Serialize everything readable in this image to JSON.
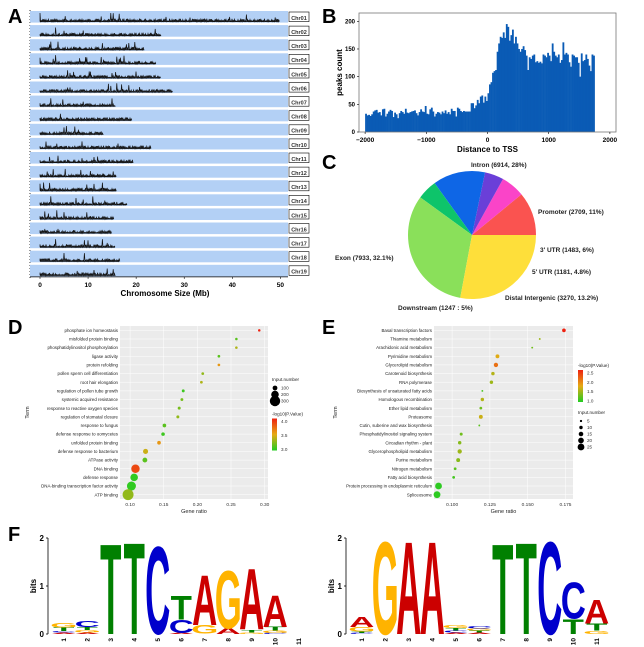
{
  "panels": {
    "A": "A",
    "B": "B",
    "C": "C",
    "D": "D",
    "E": "E",
    "F": "F"
  },
  "chart_data": [
    {
      "id": "A",
      "type": "bar",
      "title": "",
      "xlabel": "Chromosome Size (Mb)",
      "ylabel": "",
      "xlim": [
        0,
        52
      ],
      "xticks": [
        0,
        10,
        20,
        30,
        40,
        50
      ],
      "track_color": "#b3d0f5",
      "bar_color": "#111111",
      "note": "Peak density tracks per chromosome; lengths approximate (Mb)",
      "chromosomes": [
        {
          "name": "Chr01",
          "length": 49.7
        },
        {
          "name": "Chr02",
          "length": 25.2
        },
        {
          "name": "Chr03",
          "length": 21.7
        },
        {
          "name": "Chr04",
          "length": 24.1
        },
        {
          "name": "Chr05",
          "length": 25.0
        },
        {
          "name": "Chr06",
          "length": 27.5
        },
        {
          "name": "Chr07",
          "length": 15.7
        },
        {
          "name": "Chr08",
          "length": 19.0
        },
        {
          "name": "Chr09",
          "length": 13.2
        },
        {
          "name": "Chr10",
          "length": 23.0
        },
        {
          "name": "Chr11",
          "length": 19.4
        },
        {
          "name": "Chr12",
          "length": 15.8
        },
        {
          "name": "Chr13",
          "length": 15.9
        },
        {
          "name": "Chr14",
          "length": 18.0
        },
        {
          "name": "Chr15",
          "length": 15.3
        },
        {
          "name": "Chr16",
          "length": 14.9
        },
        {
          "name": "Chr17",
          "length": 15.6
        },
        {
          "name": "Chr18",
          "length": 16.5
        },
        {
          "name": "Chr19",
          "length": 15.7
        }
      ]
    },
    {
      "id": "B",
      "type": "bar",
      "title": "",
      "xlabel": "Distance to TSS",
      "ylabel": "peaks count",
      "xlim": [
        -2100,
        2100
      ],
      "ylim": [
        0,
        215
      ],
      "xticks": [
        -2000,
        -1000,
        0,
        1000,
        2000
      ],
      "yticks": [
        0,
        50,
        100,
        150,
        200
      ],
      "color": "#0a5bb5",
      "bin_width": 25,
      "x_start": -2000,
      "values": [
        33,
        30,
        31,
        29,
        32,
        37,
        39,
        40,
        35,
        36,
        30,
        41,
        42,
        28,
        33,
        37,
        40,
        38,
        27,
        35,
        32,
        25,
        34,
        38,
        36,
        33,
        42,
        35,
        34,
        36,
        37,
        38,
        39,
        34,
        30,
        36,
        41,
        37,
        36,
        47,
        33,
        32,
        41,
        44,
        37,
        28,
        33,
        36,
        35,
        32,
        37,
        34,
        39,
        33,
        36,
        32,
        42,
        38,
        38,
        28,
        44,
        42,
        38,
        36,
        38,
        37,
        37,
        37,
        37,
        52,
        52,
        43,
        48,
        58,
        52,
        64,
        66,
        53,
        64,
        56,
        70,
        86,
        90,
        107,
        110,
        112,
        145,
        160,
        172,
        170,
        180,
        170,
        195,
        190,
        165,
        175,
        185,
        160,
        172,
        160,
        150,
        145,
        150,
        155,
        148,
        138,
        112,
        135,
        132,
        138,
        140,
        126,
        128,
        125,
        127,
        124,
        140,
        138,
        135,
        143,
        138,
        128,
        160,
        145,
        138,
        135,
        140,
        125,
        130,
        162,
        140,
        143,
        140,
        126,
        118,
        140,
        138,
        135,
        135,
        125,
        100,
        142,
        128,
        130,
        140,
        132,
        120,
        110,
        140,
        138
      ]
    },
    {
      "id": "C",
      "type": "pie",
      "title": "",
      "slices": [
        {
          "label": "Promoter (2709, 11%)",
          "name": "Promoter",
          "value": 2709,
          "percent": 11,
          "color": "#fa5350"
        },
        {
          "label": "3' UTR (1483, 6%)",
          "name": "3' UTR",
          "value": 1483,
          "percent": 6,
          "color": "#fa44c8"
        },
        {
          "label": "5' UTR (1181, 4.8%)",
          "name": "5' UTR",
          "value": 1181,
          "percent": 4.8,
          "color": "#6a3fd8"
        },
        {
          "label": "Distal Intergenic (3270, 13.2%)",
          "name": "Distal Intergenic",
          "value": 3270,
          "percent": 13.2,
          "color": "#0e66e6"
        },
        {
          "label": "Downstream (1247 : 5%)",
          "name": "Downstream",
          "value": 1247,
          "percent": 5,
          "color": "#0ec46a"
        },
        {
          "label": "Exon (7933, 32.1%)",
          "name": "Exon",
          "value": 7933,
          "percent": 32.1,
          "color": "#8ae05a"
        },
        {
          "label": "Intron (6914, 28%)",
          "name": "Intron",
          "value": 6914,
          "percent": 28,
          "color": "#fedf3a"
        }
      ]
    },
    {
      "id": "D",
      "type": "scatter",
      "title": "",
      "xlabel": "Gene ratio",
      "ylabel": "Term",
      "xlim": [
        0.085,
        0.305
      ],
      "xticks": [
        "0.10",
        "0.15",
        "0.20",
        "0.25",
        "0.30"
      ],
      "xtick_values": [
        0.1,
        0.15,
        0.2,
        0.25,
        0.3
      ],
      "size_legend": {
        "title": "Input.number",
        "values": [
          100,
          200,
          300
        ]
      },
      "color_legend": {
        "title": "-log10(P.Value)",
        "ticks": [
          "4.0",
          "3.5",
          "3.0"
        ],
        "range": [
          2.8,
          4.2
        ],
        "low_color": "#22cc22",
        "high_color": "#ee2211"
      },
      "terms": [
        {
          "term": "phosphate ion homeostasis",
          "gene_ratio": 0.292,
          "input_number": 18,
          "neg_log10_p": 4.2
        },
        {
          "term": "misfolded protein binding",
          "gene_ratio": 0.258,
          "input_number": 20,
          "neg_log10_p": 3.0
        },
        {
          "term": "phosphatidylinositol phosphorylation",
          "gene_ratio": 0.258,
          "input_number": 20,
          "neg_log10_p": 3.3
        },
        {
          "term": "ligase activity",
          "gene_ratio": 0.232,
          "input_number": 25,
          "neg_log10_p": 3.0
        },
        {
          "term": "protein refolding",
          "gene_ratio": 0.232,
          "input_number": 25,
          "neg_log10_p": 3.6
        },
        {
          "term": "pollen sperm cell differentiation",
          "gene_ratio": 0.208,
          "input_number": 26,
          "neg_log10_p": 3.2
        },
        {
          "term": "root hair elongation",
          "gene_ratio": 0.206,
          "input_number": 27,
          "neg_log10_p": 3.3
        },
        {
          "term": "regulation of pollen tube growth",
          "gene_ratio": 0.179,
          "input_number": 32,
          "neg_log10_p": 2.9
        },
        {
          "term": "systemic acquired resistance",
          "gene_ratio": 0.177,
          "input_number": 32,
          "neg_log10_p": 3.1
        },
        {
          "term": "response to reactive oxygen species",
          "gene_ratio": 0.173,
          "input_number": 35,
          "neg_log10_p": 3.1
        },
        {
          "term": "regulation of stomatal closure",
          "gene_ratio": 0.171,
          "input_number": 35,
          "neg_log10_p": 3.2
        },
        {
          "term": "response to fungus",
          "gene_ratio": 0.151,
          "input_number": 60,
          "neg_log10_p": 3.0
        },
        {
          "term": "defense response to oomycetes",
          "gene_ratio": 0.149,
          "input_number": 55,
          "neg_log10_p": 2.9
        },
        {
          "term": "unfolded protein binding",
          "gene_ratio": 0.143,
          "input_number": 60,
          "neg_log10_p": 3.6
        },
        {
          "term": "defense response to bacterium",
          "gene_ratio": 0.123,
          "input_number": 110,
          "neg_log10_p": 3.4
        },
        {
          "term": "ATPase activity",
          "gene_ratio": 0.122,
          "input_number": 100,
          "neg_log10_p": 3.0
        },
        {
          "term": "DNA binding",
          "gene_ratio": 0.108,
          "input_number": 230,
          "neg_log10_p": 4.0
        },
        {
          "term": "defense response",
          "gene_ratio": 0.106,
          "input_number": 200,
          "neg_log10_p": 2.85
        },
        {
          "term": "DNA-binding transcription factor activity",
          "gene_ratio": 0.102,
          "input_number": 250,
          "neg_log10_p": 2.85
        },
        {
          "term": "ATP binding",
          "gene_ratio": 0.097,
          "input_number": 320,
          "neg_log10_p": 3.2
        }
      ]
    },
    {
      "id": "E",
      "type": "scatter",
      "title": "",
      "xlabel": "Gene ratio",
      "ylabel": "Term",
      "xlim": [
        0.088,
        0.18
      ],
      "xticks": [
        "0.100",
        "0.125",
        "0.150",
        "0.175"
      ],
      "xtick_values": [
        0.1,
        0.125,
        0.15,
        0.175
      ],
      "size_legend": {
        "title": "Input.number",
        "values": [
          5,
          10,
          15,
          20,
          25
        ]
      },
      "color_legend": {
        "title": "-log10(P.Value)",
        "ticks": [
          "2.5",
          "2.0",
          "1.5",
          "1.0"
        ],
        "range": [
          0.95,
          2.7
        ],
        "low_color": "#22cc22",
        "high_color": "#ee2211"
      },
      "terms": [
        {
          "term": "Basal transcription factors",
          "gene_ratio": 0.174,
          "input_number": 11,
          "neg_log10_p": 2.7
        },
        {
          "term": "Thiamine metabolism",
          "gene_ratio": 0.158,
          "input_number": 3,
          "neg_log10_p": 1.5
        },
        {
          "term": "Arachidonic acid metabolism",
          "gene_ratio": 0.153,
          "input_number": 3,
          "neg_log10_p": 1.3
        },
        {
          "term": "Pyrimidine metabolism",
          "gene_ratio": 0.13,
          "input_number": 12,
          "neg_log10_p": 1.8
        },
        {
          "term": "Glycerolipid metabolism",
          "gene_ratio": 0.129,
          "input_number": 14,
          "neg_log10_p": 2.2
        },
        {
          "term": "Carotenoid biosynthesis",
          "gene_ratio": 0.127,
          "input_number": 10,
          "neg_log10_p": 1.6
        },
        {
          "term": "RNA polymerase",
          "gene_ratio": 0.126,
          "input_number": 10,
          "neg_log10_p": 1.5
        },
        {
          "term": "Biosynthesis of unsaturated fatty acids",
          "gene_ratio": 0.12,
          "input_number": 3,
          "neg_log10_p": 1.1
        },
        {
          "term": "Homologous recombination",
          "gene_ratio": 0.12,
          "input_number": 10,
          "neg_log10_p": 1.6
        },
        {
          "term": "Ether lipid metabolism",
          "gene_ratio": 0.119,
          "input_number": 7,
          "neg_log10_p": 1.3
        },
        {
          "term": "Proteasome",
          "gene_ratio": 0.119,
          "input_number": 12,
          "neg_log10_p": 1.7
        },
        {
          "term": "Cutin, suberine and wax biosynthesis",
          "gene_ratio": 0.118,
          "input_number": 3,
          "neg_log10_p": 1.2
        },
        {
          "term": "Phosphatidylinositol signaling system",
          "gene_ratio": 0.106,
          "input_number": 8,
          "neg_log10_p": 1.3
        },
        {
          "term": "Circadian rhythm - plant",
          "gene_ratio": 0.105,
          "input_number": 10,
          "neg_log10_p": 1.4
        },
        {
          "term": "Glycerophospholipid metabolism",
          "gene_ratio": 0.105,
          "input_number": 14,
          "neg_log10_p": 1.5
        },
        {
          "term": "Purine metabolism",
          "gene_ratio": 0.104,
          "input_number": 12,
          "neg_log10_p": 1.4
        },
        {
          "term": "Nitrogen metabolism",
          "gene_ratio": 0.102,
          "input_number": 7,
          "neg_log10_p": 1.2
        },
        {
          "term": "Fatty acid biosynthesis",
          "gene_ratio": 0.101,
          "input_number": 7,
          "neg_log10_p": 1.1
        },
        {
          "term": "Protein processing in endoplasmic reticulum",
          "gene_ratio": 0.091,
          "input_number": 25,
          "neg_log10_p": 1.0
        },
        {
          "term": "Spliceosome",
          "gene_ratio": 0.09,
          "input_number": 25,
          "neg_log10_p": 1.0
        }
      ]
    },
    {
      "id": "F1",
      "type": "bar",
      "title": "",
      "xlabel": "",
      "ylabel": "bits",
      "ylim": [
        0,
        2
      ],
      "yticks": [
        0,
        1,
        2
      ],
      "positions": [
        "1",
        "2",
        "3",
        "4",
        "5",
        "6",
        "7",
        "8",
        "9",
        "10",
        "11"
      ],
      "letter_colors": {
        "A": "#cc0000",
        "C": "#0000cc",
        "G": "#ffb300",
        "T": "#008000"
      },
      "stacks": [
        [
          {
            "l": "A",
            "h": 0.03
          },
          {
            "l": "C",
            "h": 0.03
          },
          {
            "l": "T",
            "h": 0.08
          },
          {
            "l": "G",
            "h": 0.09
          }
        ],
        [
          {
            "l": "A",
            "h": 0.03
          },
          {
            "l": "G",
            "h": 0.05
          },
          {
            "l": "T",
            "h": 0.07
          },
          {
            "l": "C",
            "h": 0.12
          }
        ],
        [
          {
            "l": "T",
            "h": 1.95
          }
        ],
        [
          {
            "l": "T",
            "h": 1.98
          }
        ],
        [
          {
            "l": "C",
            "h": 1.9
          }
        ],
        [
          {
            "l": "A",
            "h": 0.02
          },
          {
            "l": "C",
            "h": 0.28
          },
          {
            "l": "T",
            "h": 0.52
          }
        ],
        [
          {
            "l": "A",
            "h": 0.01
          },
          {
            "l": "G",
            "h": 0.18
          },
          {
            "l": "A",
            "h": 1.08
          }
        ],
        [
          {
            "l": "A",
            "h": 0.13
          },
          {
            "l": "G",
            "h": 1.25
          }
        ],
        [
          {
            "l": "G",
            "h": 0.03
          },
          {
            "l": "T",
            "h": 0.06
          },
          {
            "l": "A",
            "h": 1.32
          }
        ],
        [
          {
            "l": "C",
            "h": 0.02
          },
          {
            "l": "G",
            "h": 0.05
          },
          {
            "l": "T",
            "h": 0.08
          },
          {
            "l": "A",
            "h": 0.68
          }
        ],
        []
      ]
    },
    {
      "id": "F2",
      "type": "bar",
      "title": "",
      "xlabel": "",
      "ylabel": "bits",
      "ylim": [
        0,
        2
      ],
      "yticks": [
        0,
        1,
        2
      ],
      "positions": [
        "1",
        "2",
        "3",
        "4",
        "5",
        "6",
        "7",
        "8",
        "9",
        "10",
        "11"
      ],
      "letter_colors": {
        "A": "#cc0000",
        "C": "#0000cc",
        "G": "#ffb300",
        "T": "#008000"
      },
      "stacks": [
        [
          {
            "l": "C",
            "h": 0.02
          },
          {
            "l": "T",
            "h": 0.03
          },
          {
            "l": "G",
            "h": 0.1
          },
          {
            "l": "A",
            "h": 0.22
          }
        ],
        [
          {
            "l": "G",
            "h": 2.0
          }
        ],
        [
          {
            "l": "A",
            "h": 2.0
          }
        ],
        [
          {
            "l": "A",
            "h": 2.0
          }
        ],
        [
          {
            "l": "A",
            "h": 0.03
          },
          {
            "l": "C",
            "h": 0.04
          },
          {
            "l": "T",
            "h": 0.05
          },
          {
            "l": "G",
            "h": 0.07
          }
        ],
        [
          {
            "l": "A",
            "h": 0.03
          },
          {
            "l": "T",
            "h": 0.04
          },
          {
            "l": "G",
            "h": 0.04
          },
          {
            "l": "C",
            "h": 0.05
          }
        ],
        [
          {
            "l": "T",
            "h": 1.95
          }
        ],
        [
          {
            "l": "T",
            "h": 1.98
          }
        ],
        [
          {
            "l": "C",
            "h": 2.0
          }
        ],
        [
          {
            "l": "T",
            "h": 0.32
          },
          {
            "l": "C",
            "h": 0.78
          }
        ],
        [
          {
            "l": "G",
            "h": 0.07
          },
          {
            "l": "T",
            "h": 0.15
          },
          {
            "l": "A",
            "h": 0.52
          }
        ]
      ]
    }
  ]
}
